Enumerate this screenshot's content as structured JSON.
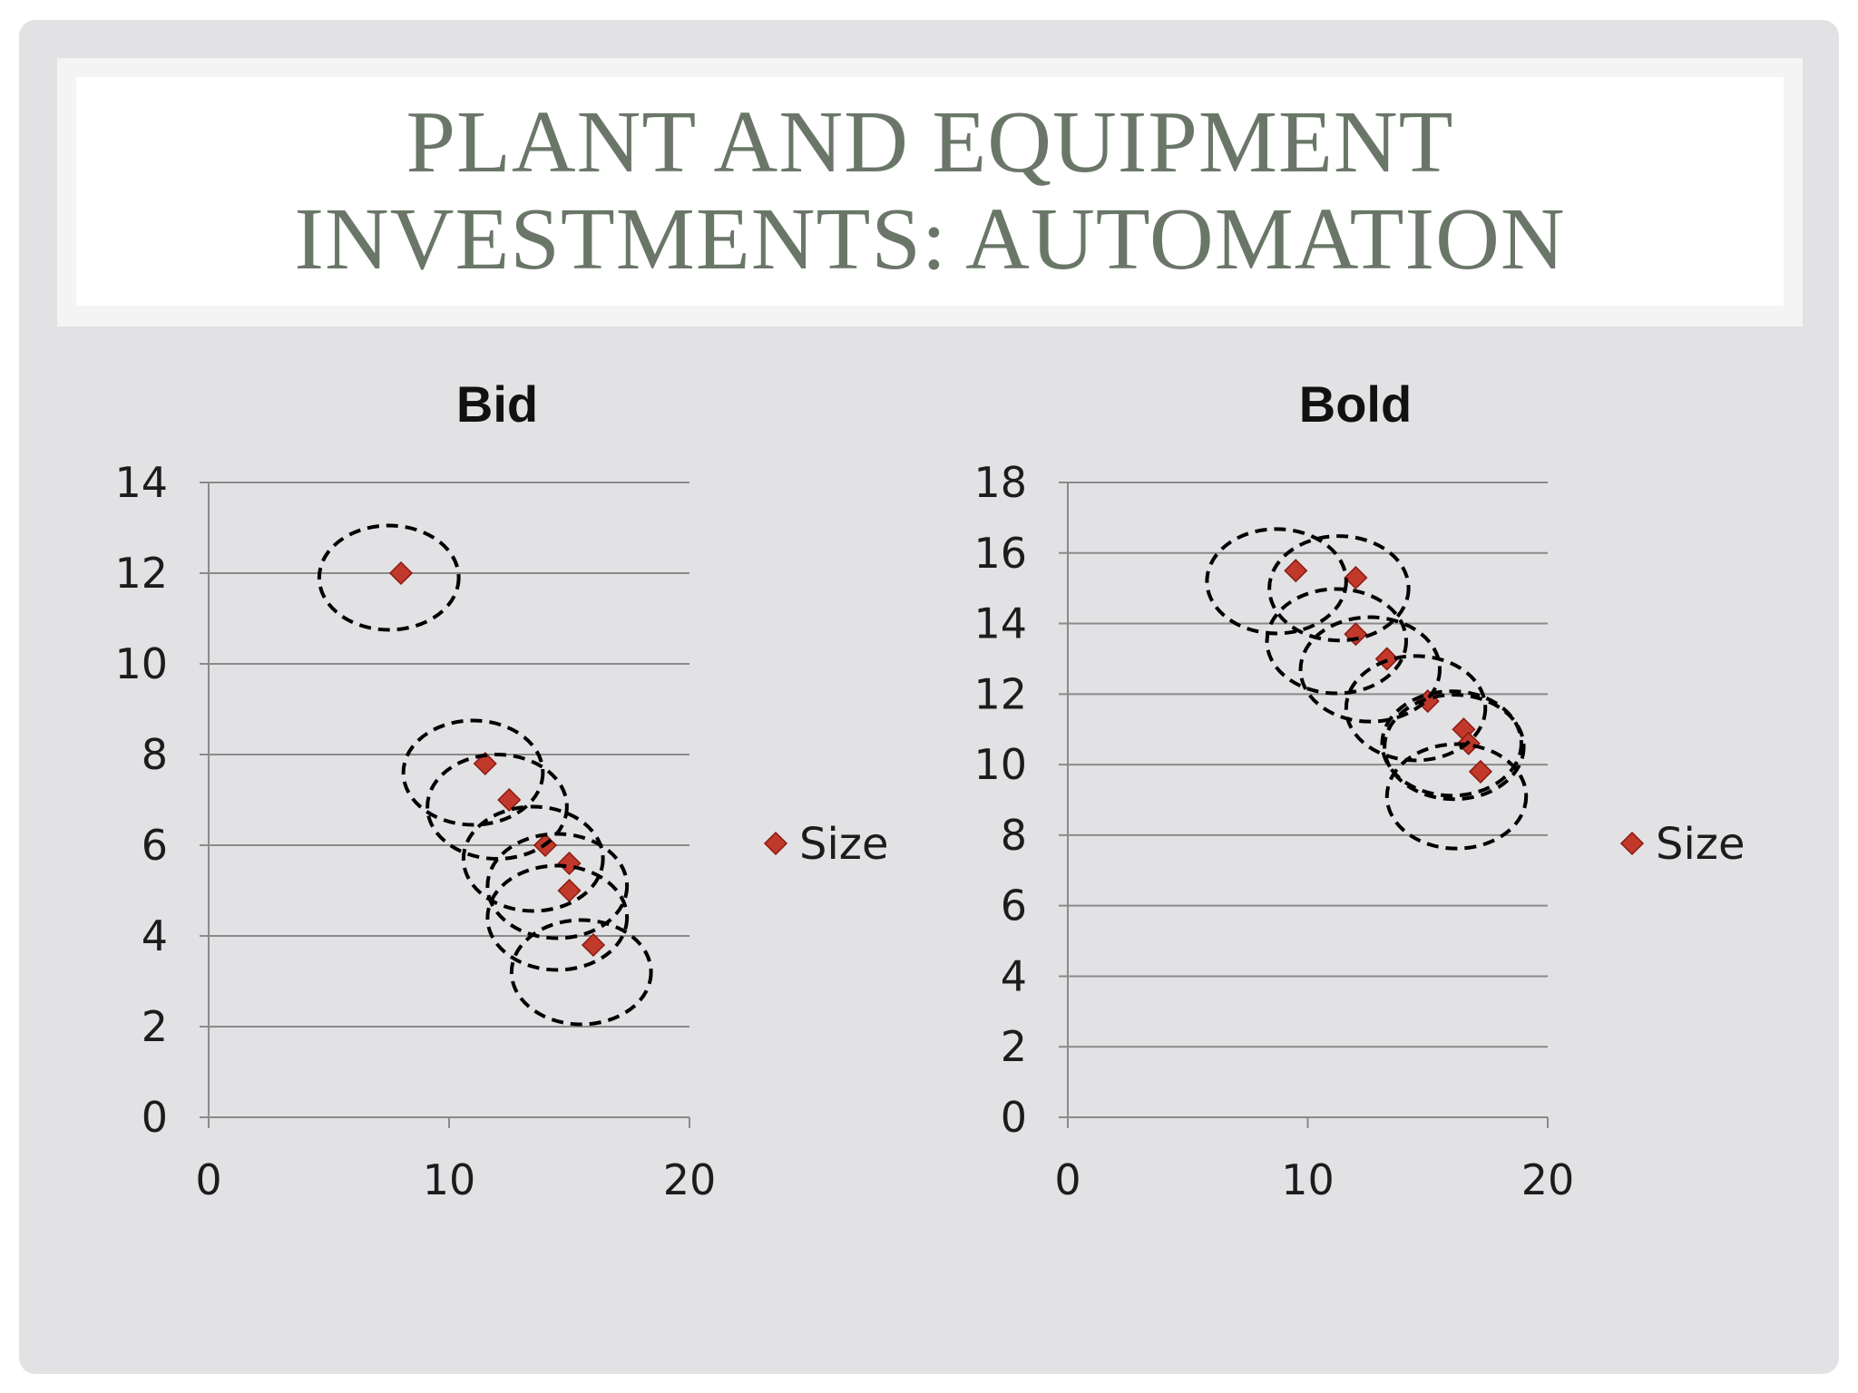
{
  "slide": {
    "title_line1": "Plant and Equipment",
    "title_line2": "Investments: Automation"
  },
  "colors": {
    "title": "#6a7768",
    "marker": "#c0392b",
    "background": "#e2e1e4"
  },
  "chart_data": [
    {
      "type": "scatter",
      "title": "Bid",
      "xlim": [
        0,
        20
      ],
      "ylim": [
        0,
        14
      ],
      "x_ticks": [
        0,
        10,
        20
      ],
      "y_ticks": [
        0,
        2,
        4,
        6,
        8,
        10,
        12,
        14
      ],
      "x_tick_labels": [
        "0",
        "10",
        "20"
      ],
      "y_tick_labels": [
        "0",
        "2",
        "4",
        "6",
        "8",
        "10",
        "12",
        "14"
      ],
      "grid": true,
      "legend_position": "right",
      "series": [
        {
          "name": "Size",
          "marker": "diamond",
          "points": [
            {
              "x": 8,
              "y": 12
            },
            {
              "x": 11.5,
              "y": 7.8
            },
            {
              "x": 12.5,
              "y": 7
            },
            {
              "x": 14,
              "y": 6
            },
            {
              "x": 15,
              "y": 5.6
            },
            {
              "x": 15,
              "y": 5
            },
            {
              "x": 16,
              "y": 3.8
            }
          ]
        }
      ],
      "annotations": [
        {
          "shape": "dashed-ellipse",
          "cx": 7.5,
          "cy": 11.9,
          "rx": 2.9,
          "ry": 1.15
        },
        {
          "shape": "dashed-ellipse",
          "cx": 11,
          "cy": 7.6,
          "rx": 2.9,
          "ry": 1.15
        },
        {
          "shape": "dashed-ellipse",
          "cx": 12,
          "cy": 6.85,
          "rx": 2.9,
          "ry": 1.15
        },
        {
          "shape": "dashed-ellipse",
          "cx": 13.5,
          "cy": 5.7,
          "rx": 2.9,
          "ry": 1.15
        },
        {
          "shape": "dashed-ellipse",
          "cx": 14.5,
          "cy": 5.1,
          "rx": 2.9,
          "ry": 1.15
        },
        {
          "shape": "dashed-ellipse",
          "cx": 14.5,
          "cy": 4.4,
          "rx": 2.9,
          "ry": 1.15
        },
        {
          "shape": "dashed-ellipse",
          "cx": 15.5,
          "cy": 3.2,
          "rx": 2.9,
          "ry": 1.15
        }
      ]
    },
    {
      "type": "scatter",
      "title": "Bold",
      "xlim": [
        0,
        20
      ],
      "ylim": [
        0,
        18
      ],
      "x_ticks": [
        0,
        10,
        20
      ],
      "y_ticks": [
        0,
        2,
        4,
        6,
        8,
        10,
        12,
        14,
        16,
        18
      ],
      "x_tick_labels": [
        "0",
        "10",
        "20"
      ],
      "y_tick_labels": [
        "0",
        "2",
        "4",
        "6",
        "8",
        "10",
        "12",
        "14",
        "16",
        "18"
      ],
      "grid": true,
      "legend_position": "right",
      "series": [
        {
          "name": "Size",
          "marker": "diamond",
          "points": [
            {
              "x": 9.5,
              "y": 15.5
            },
            {
              "x": 12,
              "y": 15.3
            },
            {
              "x": 12,
              "y": 13.7
            },
            {
              "x": 13.3,
              "y": 13
            },
            {
              "x": 15,
              "y": 11.8
            },
            {
              "x": 16.5,
              "y": 11
            },
            {
              "x": 16.7,
              "y": 10.6
            },
            {
              "x": 17.2,
              "y": 9.8
            }
          ]
        }
      ],
      "annotations": [
        {
          "shape": "dashed-ellipse",
          "cx": 8.7,
          "cy": 15.2,
          "rx": 2.9,
          "ry": 1.48
        },
        {
          "shape": "dashed-ellipse",
          "cx": 11.3,
          "cy": 15,
          "rx": 2.9,
          "ry": 1.48
        },
        {
          "shape": "dashed-ellipse",
          "cx": 11.2,
          "cy": 13.5,
          "rx": 2.9,
          "ry": 1.48
        },
        {
          "shape": "dashed-ellipse",
          "cx": 12.6,
          "cy": 12.7,
          "rx": 2.9,
          "ry": 1.48
        },
        {
          "shape": "dashed-ellipse",
          "cx": 14.5,
          "cy": 11.6,
          "rx": 2.9,
          "ry": 1.48
        },
        {
          "shape": "dashed-ellipse",
          "cx": 16,
          "cy": 10.6,
          "rx": 2.9,
          "ry": 1.48
        },
        {
          "shape": "dashed-ellipse",
          "cx": 16.1,
          "cy": 10.5,
          "rx": 2.9,
          "ry": 1.48
        },
        {
          "shape": "dashed-ellipse",
          "cx": 16.2,
          "cy": 9.1,
          "rx": 2.9,
          "ry": 1.48
        }
      ]
    }
  ]
}
